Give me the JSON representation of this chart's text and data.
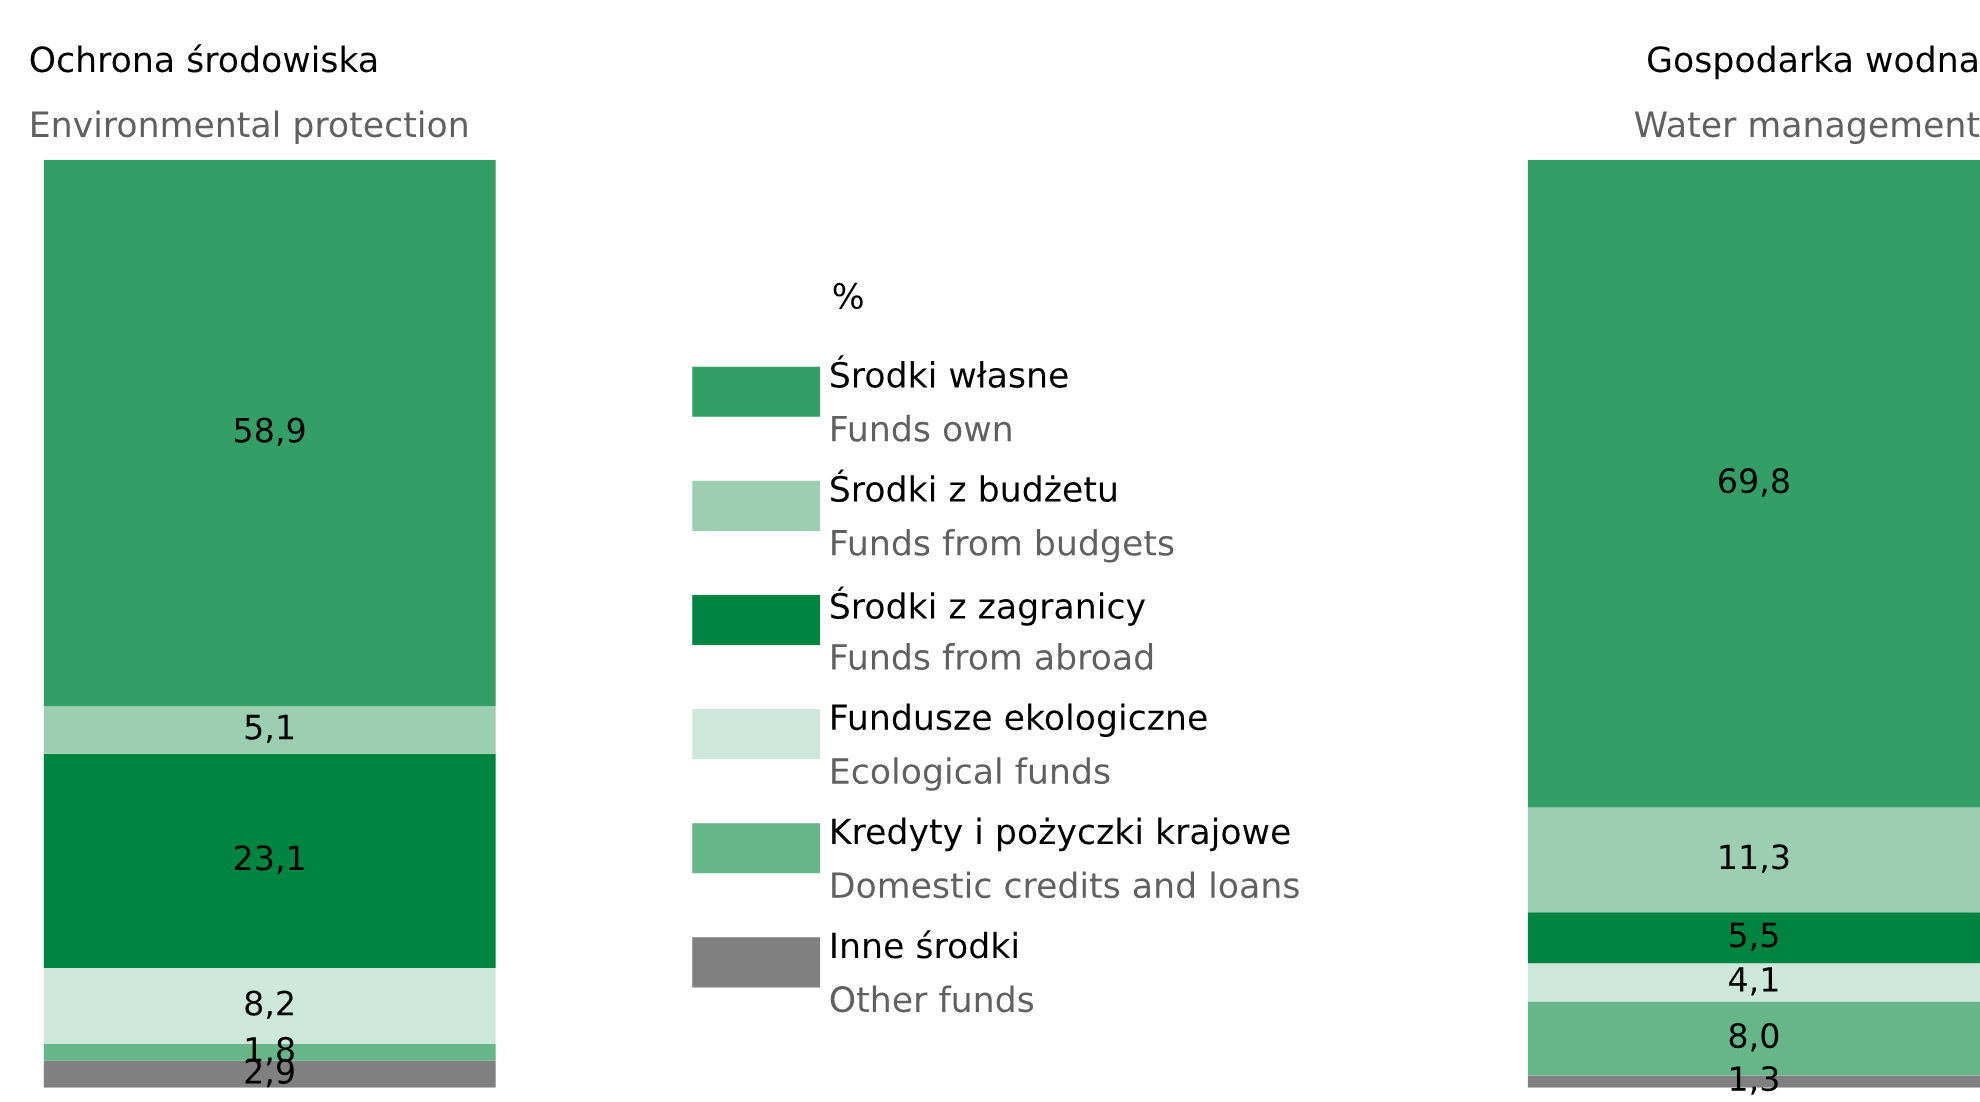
{
  "chart_data": {
    "type": "bar",
    "stacked": true,
    "categories": [
      "Ochrona środowiska\nEnvironmental protection",
      "Gospodarka wodna\nWater management"
    ],
    "legend": "center",
    "legend_title": "%",
    "series": [
      {
        "name": "Inne środki\nOther funds",
        "color": "#808080",
        "values": [
          2.9,
          1.3
        ],
        "value_labels": [
          "2,9",
          "1,3"
        ]
      },
      {
        "name": "Kredyty i pożyczki krajowe\nDomestic credits and loans",
        "color": "#66b68a",
        "values": [
          1.8,
          8.0
        ],
        "value_labels": [
          "1,8",
          "8,0"
        ]
      },
      {
        "name": "Fundusze ekologiczne\nEcological funds",
        "color": "#cde8da",
        "values": [
          8.2,
          4.1
        ],
        "value_labels": [
          "8,2",
          "4,1"
        ]
      },
      {
        "name": "Środki z zagranicy\nFunds from abroad",
        "color": "#008541",
        "values": [
          23.1,
          5.5
        ],
        "value_labels": [
          "23,1",
          "5,5"
        ]
      },
      {
        "name": "Środki z budżetu\nFunds from budgets",
        "color": "#9ccfb2",
        "values": [
          5.1,
          11.3
        ],
        "value_labels": [
          "5,1",
          "11,3"
        ]
      },
      {
        "name": "Środki własne\nFunds own",
        "color": "#339e66",
        "values": [
          58.9,
          69.8
        ],
        "value_labels": [
          "58,9",
          "69,8"
        ]
      }
    ]
  }
}
